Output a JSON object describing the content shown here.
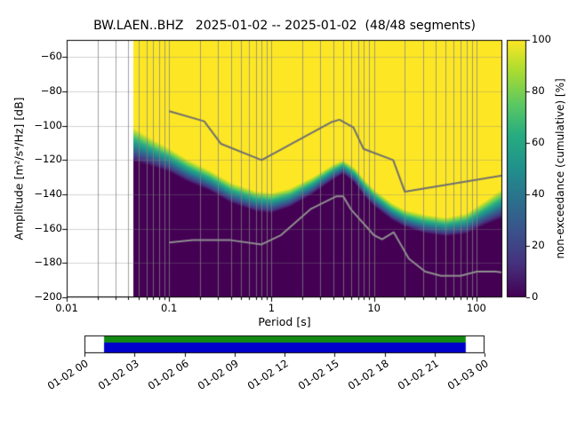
{
  "chart_data": {
    "type": "heatmap",
    "title": "BW.LAEN..BHZ   2025-01-02 -- 2025-01-02  (48/48 segments)",
    "xlabel": "Period [s]",
    "ylabel": "Amplitude [m²/s⁴/Hz] [dB]",
    "x_scale": "log",
    "xlim": [
      0.01,
      179
    ],
    "ylim": [
      -200,
      -50
    ],
    "grid": true,
    "x_ticks": {
      "values": [
        0.01,
        0.1,
        1,
        10,
        100
      ],
      "labels": [
        "0.01",
        "0.1",
        "1",
        "10",
        "100"
      ]
    },
    "y_ticks": {
      "values": [
        -60,
        -80,
        -100,
        -120,
        -140,
        -160,
        -180,
        -200
      ],
      "labels": [
        "−60",
        "−80",
        "−100",
        "−120",
        "−140",
        "−160",
        "−180",
        "−200"
      ]
    },
    "colorbar": {
      "label": "non-exceedance (cumulative) [%]",
      "range": [
        0,
        100
      ],
      "colormap": "viridis",
      "ticks": {
        "values": [
          0,
          20,
          40,
          60,
          80,
          100
        ],
        "labels": [
          "0",
          "20",
          "40",
          "60",
          "80",
          "100"
        ]
      }
    },
    "colormap_stops": [
      [
        0.0,
        "#440154"
      ],
      [
        0.13,
        "#46327e"
      ],
      [
        0.25,
        "#3b518b"
      ],
      [
        0.38,
        "#2c718e"
      ],
      [
        0.5,
        "#21918c"
      ],
      [
        0.63,
        "#27ad81"
      ],
      [
        0.75,
        "#5cc863"
      ],
      [
        0.88,
        "#aadc32"
      ],
      [
        1.0,
        "#fde725"
      ]
    ],
    "histogram": {
      "description": "cumulative PPSD: % of 48 segments with PSD below each amplitude; boundary = 50% level, width = 0→100% transition span in dB",
      "period_range": [
        0.045,
        179
      ],
      "boundary_periods": [
        0.045,
        0.07,
        0.1,
        0.15,
        0.25,
        0.4,
        0.7,
        1.0,
        1.5,
        2.5,
        4.0,
        5.0,
        6.5,
        8.0,
        10,
        15,
        20,
        30,
        50,
        80,
        120,
        170,
        179
      ],
      "boundary_center_db": [
        -111,
        -116,
        -120,
        -126,
        -132,
        -139,
        -144,
        -145,
        -142,
        -135,
        -127,
        -124,
        -129,
        -136,
        -142,
        -150,
        -154,
        -157,
        -159,
        -157,
        -151,
        -146,
        -146
      ],
      "boundary_width_db": [
        20,
        16,
        14,
        13,
        12,
        12,
        12,
        12,
        11,
        10,
        9,
        8,
        9,
        10,
        10,
        10,
        10,
        11,
        11,
        12,
        14,
        17,
        17
      ]
    },
    "noise_models": {
      "color_high": "#6f6f6f",
      "color_low": "#8f8f8f",
      "high": {
        "name": "NHNM",
        "periods": [
          0.1,
          0.22,
          0.32,
          0.8,
          3.8,
          4.6,
          6.3,
          7.9,
          15.4,
          20.0,
          354.8
        ],
        "db": [
          -91.5,
          -97.4,
          -110.5,
          -120.0,
          -98.0,
          -96.5,
          -101.0,
          -113.5,
          -120.0,
          -138.5,
          -126.0
        ]
      },
      "low": {
        "name": "NLNM",
        "periods": [
          0.1,
          0.17,
          0.4,
          0.8,
          1.24,
          2.4,
          4.3,
          5.0,
          6.0,
          10.0,
          12.0,
          15.6,
          21.9,
          31.6,
          45.0,
          70.0,
          101.0,
          154.0,
          328.0
        ],
        "db": [
          -168.0,
          -166.7,
          -166.7,
          -169.2,
          -163.7,
          -148.6,
          -141.1,
          -141.1,
          -149.0,
          -163.8,
          -166.2,
          -162.1,
          -177.5,
          -185.0,
          -187.5,
          -187.5,
          -185.0,
          -185.0,
          -187.5
        ]
      }
    },
    "coverage": {
      "labels": [
        "01-02 00",
        "01-02 03",
        "01-02 06",
        "01-02 09",
        "01-02 12",
        "01-02 15",
        "01-02 18",
        "01-02 21",
        "01-03 00"
      ],
      "data_extent": [
        0.049,
        0.953
      ],
      "green": "#138a13",
      "blue": "#0000cd"
    }
  }
}
